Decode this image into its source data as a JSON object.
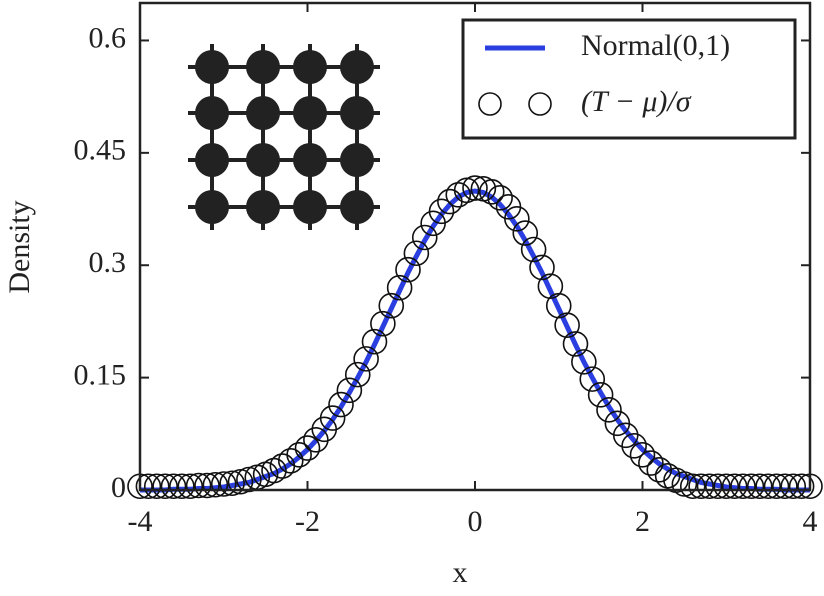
{
  "chart_data": {
    "type": "line",
    "x_label": "x",
    "y_label": "Density",
    "x": [
      -4,
      -3.9,
      -3.8,
      -3.7,
      -3.6,
      -3.5,
      -3.4,
      -3.3,
      -3.2,
      -3.1,
      -3,
      -2.9,
      -2.8,
      -2.7,
      -2.6,
      -2.5,
      -2.4,
      -2.3,
      -2.2,
      -2.1,
      -2,
      -1.9,
      -1.8,
      -1.7,
      -1.6,
      -1.5,
      -1.4,
      -1.3,
      -1.2,
      -1.1,
      -1,
      -0.9,
      -0.8,
      -0.7,
      -0.6,
      -0.5,
      -0.4,
      -0.3,
      -0.2,
      -0.1,
      0,
      0.1,
      0.2,
      0.3,
      0.4,
      0.5,
      0.6,
      0.7,
      0.8,
      0.9,
      1,
      1.1,
      1.2,
      1.3,
      1.4,
      1.5,
      1.6,
      1.7,
      1.8,
      1.9,
      2,
      2.1,
      2.2,
      2.3,
      2.4,
      2.5,
      2.6,
      2.7,
      2.8,
      2.9,
      3,
      3.1,
      3.2,
      3.3,
      3.4,
      3.5,
      3.6,
      3.7,
      3.8,
      3.9,
      4
    ],
    "series": [
      {
        "name": "Normal(0,1)",
        "color": "#2b3fe0",
        "marker": "line",
        "values": [
          0,
          0,
          0,
          0,
          0.001,
          0.001,
          0.001,
          0.002,
          0.002,
          0.003,
          0.004,
          0.006,
          0.008,
          0.01,
          0.014,
          0.018,
          0.022,
          0.028,
          0.035,
          0.044,
          0.054,
          0.066,
          0.079,
          0.094,
          0.111,
          0.13,
          0.15,
          0.171,
          0.194,
          0.218,
          0.242,
          0.266,
          0.29,
          0.312,
          0.333,
          0.352,
          0.368,
          0.381,
          0.391,
          0.397,
          0.399,
          0.397,
          0.391,
          0.381,
          0.368,
          0.352,
          0.333,
          0.312,
          0.29,
          0.266,
          0.242,
          0.218,
          0.194,
          0.171,
          0.15,
          0.13,
          0.111,
          0.094,
          0.079,
          0.066,
          0.054,
          0.044,
          0.035,
          0.028,
          0.022,
          0.018,
          0.014,
          0.01,
          0.008,
          0.006,
          0.004,
          0.003,
          0.002,
          0.002,
          0.001,
          0.001,
          0.001,
          0,
          0,
          0,
          0
        ]
      },
      {
        "name": "(T − μ)/σ",
        "color": "#111111",
        "marker": "circle",
        "values": [
          0.005,
          0.005,
          0.005,
          0.005,
          0.005,
          0.005,
          0.005,
          0.006,
          0.006,
          0.007,
          0.008,
          0.009,
          0.011,
          0.014,
          0.017,
          0.021,
          0.026,
          0.032,
          0.039,
          0.047,
          0.056,
          0.067,
          0.081,
          0.096,
          0.114,
          0.133,
          0.154,
          0.175,
          0.198,
          0.222,
          0.246,
          0.27,
          0.294,
          0.316,
          0.337,
          0.356,
          0.372,
          0.385,
          0.394,
          0.4,
          0.403,
          0.402,
          0.398,
          0.39,
          0.378,
          0.362,
          0.343,
          0.321,
          0.297,
          0.272,
          0.246,
          0.22,
          0.195,
          0.171,
          0.148,
          0.127,
          0.107,
          0.089,
          0.073,
          0.059,
          0.047,
          0.036,
          0.027,
          0.019,
          0.013,
          0.008,
          0.005,
          0.005,
          0.005,
          0.005,
          0.005,
          0.005,
          0.005,
          0.005,
          0.005,
          0.005,
          0.005,
          0.005,
          0.005,
          0.005,
          0.005
        ]
      }
    ],
    "xlim": [
      -4,
      4
    ],
    "xticks": [
      -4,
      -2,
      0,
      2,
      4
    ],
    "ylim": [
      0,
      0.65
    ],
    "yticks": [
      0,
      0.15,
      0.3,
      0.45,
      0.6
    ],
    "legend": "upper right"
  }
}
